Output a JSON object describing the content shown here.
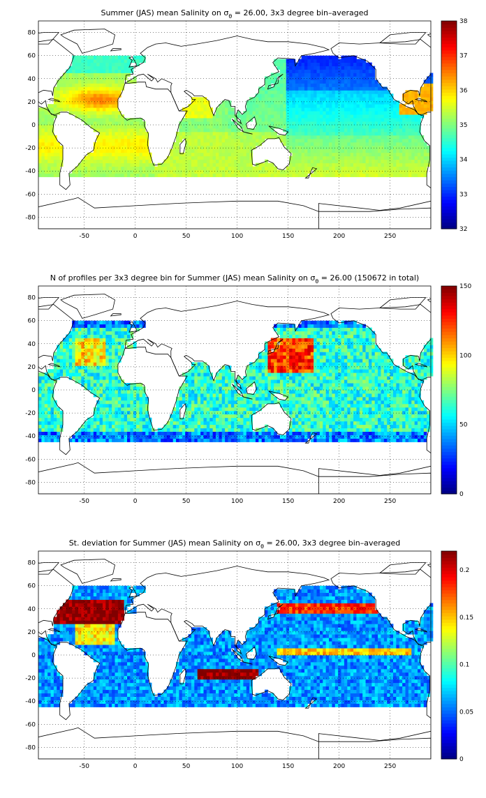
{
  "figure": {
    "background": "#ffffff",
    "land_color": "#ffffff",
    "coast_color": "#000000"
  },
  "chart_data": [
    {
      "type": "heatmap",
      "title_pre": "Summer (JAS) mean Salinity on ",
      "title_sigma": "σ",
      "title_sub": "θ",
      "title_post": " = 26.00, 3x3 degree bin–averaged",
      "xlim": [
        -95,
        290
      ],
      "ylim": [
        -90,
        90
      ],
      "x_ticks": [
        "-50",
        "0",
        "50",
        "100",
        "150",
        "200",
        "250"
      ],
      "x_tick_values": [
        -50,
        0,
        50,
        100,
        150,
        200,
        250
      ],
      "y_ticks": [
        "80",
        "60",
        "40",
        "20",
        "0",
        "-20",
        "-40",
        "-60",
        "-80"
      ],
      "y_tick_values": [
        80,
        60,
        40,
        20,
        0,
        -20,
        -40,
        -60,
        -80
      ],
      "colorbar": {
        "range": [
          32,
          38
        ],
        "ticks": [
          "38",
          "37",
          "36",
          "35",
          "34",
          "33",
          "32"
        ],
        "tick_values": [
          38,
          37,
          36,
          35,
          34,
          33,
          32
        ],
        "colormap": "jet"
      },
      "bin_size_deg": 3,
      "grid": true,
      "field": "salinity"
    },
    {
      "type": "heatmap",
      "title_pre": "N of profiles per 3x3 degree bin for Summer (JAS) mean Salinity on ",
      "title_sigma": "σ",
      "title_sub": "θ",
      "title_post": " = 26.00 (150672 in total)",
      "total_profiles": 150672,
      "xlim": [
        -95,
        290
      ],
      "ylim": [
        -90,
        90
      ],
      "x_ticks": [
        "-50",
        "0",
        "50",
        "100",
        "150",
        "200",
        "250"
      ],
      "x_tick_values": [
        -50,
        0,
        50,
        100,
        150,
        200,
        250
      ],
      "y_ticks": [
        "80",
        "60",
        "40",
        "20",
        "0",
        "-20",
        "-40",
        "-60",
        "-80"
      ],
      "y_tick_values": [
        80,
        60,
        40,
        20,
        0,
        -20,
        -40,
        -60,
        -80
      ],
      "colorbar": {
        "range": [
          0,
          150
        ],
        "ticks": [
          "150",
          "100",
          "50",
          "0"
        ],
        "tick_values": [
          150,
          100,
          50,
          0
        ],
        "colormap": "jet"
      },
      "bin_size_deg": 3,
      "grid": true,
      "field": "count"
    },
    {
      "type": "heatmap",
      "title_pre": "St. deviation for Summer (JAS) mean Salinity on ",
      "title_sigma": "σ",
      "title_sub": "θ",
      "title_post": " = 26.00, 3x3 degree bin–averaged",
      "xlim": [
        -95,
        290
      ],
      "ylim": [
        -90,
        90
      ],
      "x_ticks": [
        "-50",
        "0",
        "50",
        "100",
        "150",
        "200",
        "250"
      ],
      "x_tick_values": [
        -50,
        0,
        50,
        100,
        150,
        200,
        250
      ],
      "y_ticks": [
        "80",
        "60",
        "40",
        "20",
        "0",
        "-20",
        "-40",
        "-60",
        "-80"
      ],
      "y_tick_values": [
        80,
        60,
        40,
        20,
        0,
        -20,
        -40,
        -60,
        -80
      ],
      "colorbar": {
        "range": [
          0,
          0.22
        ],
        "ticks": [
          "0.2",
          "0.15",
          "0.1",
          "0.05",
          "0"
        ],
        "tick_values": [
          0.2,
          0.15,
          0.1,
          0.05,
          0
        ],
        "colormap": "jet"
      },
      "bin_size_deg": 3,
      "grid": true,
      "field": "stdev"
    }
  ]
}
